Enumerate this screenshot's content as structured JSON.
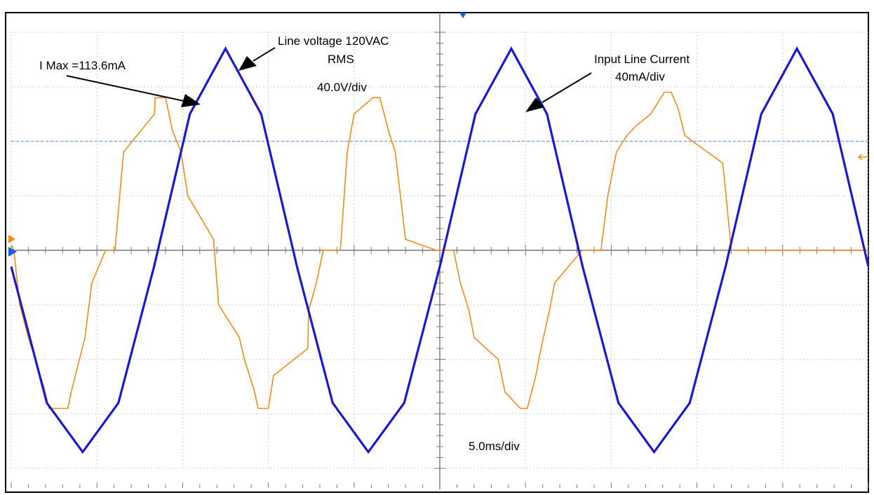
{
  "chart_data": {
    "type": "line",
    "x_unit": "ms",
    "x_range": [
      0,
      50
    ],
    "timebase_label": "5.0ms/div",
    "grid": true,
    "grid_divisions": {
      "x": 10,
      "y": 8
    },
    "background": "#ffffff",
    "series": [
      {
        "color": "#1a1acc",
        "peak_y_divisions": 3.7,
        "frequency_hz": 60,
        "x": [
          0,
          2.08,
          4.17,
          6.25,
          8.33,
          10.42,
          12.5,
          14.58,
          16.67,
          18.75,
          20.83,
          22.92,
          25,
          27.08,
          29.17,
          31.25,
          33.33,
          35.42,
          37.5,
          39.58,
          41.67,
          43.75,
          45.83,
          47.92,
          50
        ],
        "y_divisions": [
          -0.3,
          -2.8,
          -3.7,
          -2.8,
          -0.3,
          2.5,
          3.7,
          2.5,
          -0.3,
          -2.8,
          -3.7,
          -2.8,
          -0.3,
          2.5,
          3.7,
          2.5,
          -0.3,
          -2.8,
          -3.7,
          -2.8,
          -0.3,
          2.5,
          3.7,
          2.5,
          -0.3
        ]
      },
      {
        "color": "#f08c14",
        "x": [
          0,
          0.15,
          0.5,
          1.0,
          1.4,
          1.9,
          2.2,
          3.3,
          3.5,
          3.9,
          4.3,
          4.7,
          5.5,
          6.05,
          6.55,
          8.35,
          8.4,
          9.0,
          9.4,
          9.9,
          10.3,
          11.8,
          12.1,
          13.3,
          13.6,
          14.2,
          14.4,
          15.0,
          15.3,
          17.3,
          17.35,
          17.8,
          18.2,
          18.7,
          19.2,
          19.6,
          20.0,
          21.1,
          21.5,
          22.0,
          22.4,
          22.7,
          23.0,
          24.8,
          25.0,
          25.1,
          25.8,
          26.2,
          26.7,
          27.0,
          28.4,
          28.8,
          29.7,
          30.1,
          30.6,
          30.9,
          31.4,
          31.7,
          33.3,
          33.5,
          34.0,
          34.4,
          34.8,
          35.3,
          35.9,
          36.5,
          37.3,
          37.7,
          38.1,
          38.5,
          38.9,
          39.3,
          41.5,
          41.7,
          42.0,
          42.4,
          42.8,
          43.3,
          43.8,
          45.7,
          46.0,
          46.3,
          46.8,
          47.3,
          47.8,
          48.3,
          49.0,
          50
        ],
        "y_divisions": [
          0.1,
          0,
          -1.0,
          -1.6,
          -2.0,
          -2.5,
          -2.9,
          -2.9,
          -2.6,
          -2.1,
          -1.6,
          -0.6,
          0,
          0,
          1.8,
          2.5,
          2.8,
          2.8,
          2.2,
          1.8,
          1.0,
          0.2,
          -1.0,
          -1.6,
          -2.0,
          -2.6,
          -2.9,
          -2.9,
          -2.3,
          -1.8,
          -1.1,
          -0.6,
          0.0,
          0,
          0,
          1.8,
          2.5,
          2.8,
          2.8,
          2.2,
          1.8,
          1.0,
          0.2,
          0,
          0,
          0,
          0,
          -0.6,
          -1.1,
          -1.6,
          -2.0,
          -2.6,
          -2.9,
          -2.9,
          -2.3,
          -1.8,
          -1.1,
          -0.6,
          0,
          0,
          0,
          0,
          1.0,
          1.8,
          2.1,
          2.3,
          2.5,
          2.7,
          2.9,
          2.9,
          2.6,
          2.1,
          1.6,
          1.0,
          0.0,
          0.0,
          0,
          0,
          0,
          0,
          0,
          0,
          0,
          0,
          0,
          0,
          0,
          0
        ]
      }
    ],
    "reference_line_y_divisions": 2.0,
    "annotations": [
      {
        "lines": [
          "I Max =113.6mA"
        ]
      },
      {
        "lines": [
          "Line voltage 120VAC",
          "RMS"
        ]
      },
      {
        "lines": [
          "40.0V/div"
        ]
      },
      {
        "lines": [
          "Input Line Current",
          "40mA/div"
        ]
      }
    ]
  },
  "colors": {
    "grid": "#b8b8b8",
    "axis": "#7a7a7a",
    "reference_line": "#6a9ee8",
    "voltage": "#1a1acc",
    "current": "#f08c14",
    "marker_blue": "#1a5ee8",
    "marker_orange": "#f08c14"
  }
}
